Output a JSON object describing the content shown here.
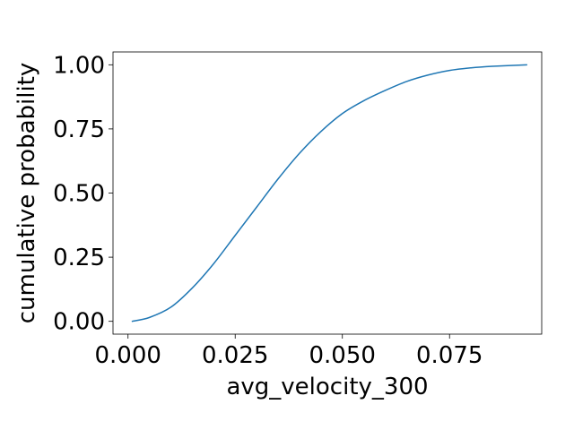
{
  "chart_data": {
    "type": "line",
    "title": "",
    "xlabel": "avg_velocity_300",
    "ylabel": "cumulative probability",
    "xlim": [
      -0.0035,
      0.0965
    ],
    "ylim": [
      -0.05,
      1.05
    ],
    "xticks": [
      {
        "value": 0.0,
        "label": "0.000"
      },
      {
        "value": 0.025,
        "label": "0.025"
      },
      {
        "value": 0.05,
        "label": "0.050"
      },
      {
        "value": 0.075,
        "label": "0.075"
      }
    ],
    "yticks": [
      {
        "value": 0.0,
        "label": "0.00"
      },
      {
        "value": 0.25,
        "label": "0.25"
      },
      {
        "value": 0.5,
        "label": "0.50"
      },
      {
        "value": 0.75,
        "label": "0.75"
      },
      {
        "value": 1.0,
        "label": "1.00"
      }
    ],
    "grid": false,
    "legend": "none",
    "series": [
      {
        "color": "#1f77b4",
        "x": [
          0.001,
          0.005,
          0.01,
          0.015,
          0.02,
          0.025,
          0.03,
          0.035,
          0.04,
          0.045,
          0.05,
          0.055,
          0.06,
          0.065,
          0.07,
          0.075,
          0.08,
          0.085,
          0.093
        ],
        "y": [
          0.0,
          0.015,
          0.055,
          0.13,
          0.225,
          0.335,
          0.445,
          0.555,
          0.655,
          0.74,
          0.81,
          0.86,
          0.9,
          0.935,
          0.96,
          0.978,
          0.988,
          0.994,
          1.0
        ]
      }
    ]
  }
}
